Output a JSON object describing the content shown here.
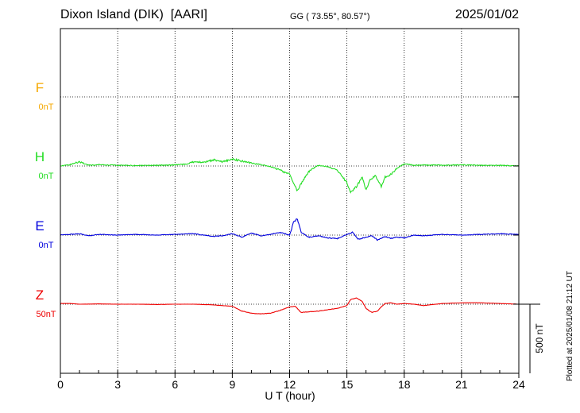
{
  "header": {
    "station": "Dixon Island (DIK)",
    "institute": "[AARI]",
    "coords": "GG ( 73.55°,  80.57°)",
    "date": "2025/01/02"
  },
  "plotted_note": "Plotted at 2025/01/08 21:12 UT",
  "colors": {
    "F": "#f5a800",
    "H": "#22dd22",
    "E": "#0000dd",
    "Z": "#ee0000"
  },
  "chart_data": {
    "type": "line",
    "title": "Dixon Island (DIK)  [AARI]",
    "xlabel": "U T (hour)",
    "xlim": [
      0,
      24
    ],
    "xticks": [
      "0",
      "3",
      "6",
      "9",
      "12",
      "15",
      "18",
      "21",
      "24"
    ],
    "grid": true,
    "scale_bar": "500 nT",
    "series": [
      {
        "name": "F",
        "offset_label": "0nT",
        "values": []
      },
      {
        "name": "H",
        "offset_label": "0nT",
        "x": [
          0,
          0.5,
          1,
          1.5,
          2,
          3,
          4,
          5,
          6,
          6.5,
          7,
          7.5,
          8,
          8.5,
          9,
          9.5,
          10,
          10.5,
          11,
          11.5,
          12,
          12.2,
          12.4,
          12.6,
          13,
          13.5,
          14,
          14.5,
          15,
          15.2,
          15.5,
          15.8,
          16,
          16.2,
          16.5,
          16.8,
          17,
          17.3,
          17.6,
          18,
          18.5,
          19,
          20,
          21,
          22,
          23,
          24
        ],
        "values": [
          0,
          10,
          30,
          5,
          10,
          5,
          3,
          5,
          8,
          12,
          30,
          25,
          45,
          30,
          50,
          35,
          20,
          10,
          -5,
          -30,
          -60,
          -120,
          -180,
          -130,
          -40,
          5,
          -5,
          -30,
          -120,
          -190,
          -150,
          -80,
          -180,
          -100,
          -70,
          -150,
          -80,
          -60,
          -20,
          15,
          5,
          8,
          5,
          8,
          5,
          5,
          0
        ]
      },
      {
        "name": "E",
        "offset_label": "0nT",
        "x": [
          0,
          0.5,
          1,
          1.5,
          2,
          3,
          4,
          5,
          6,
          7,
          8,
          8.5,
          9,
          9.5,
          10,
          10.5,
          11,
          11.5,
          12,
          12.2,
          12.4,
          12.6,
          13,
          13.5,
          14,
          14.5,
          15,
          15.3,
          15.6,
          16,
          16.3,
          16.6,
          17,
          17.3,
          17.6,
          18,
          18.5,
          19,
          20,
          21,
          22,
          23,
          24
        ],
        "values": [
          0,
          5,
          10,
          -5,
          5,
          0,
          5,
          0,
          5,
          10,
          -10,
          -5,
          10,
          -15,
          15,
          -5,
          5,
          20,
          0,
          90,
          120,
          20,
          -15,
          -5,
          -20,
          -25,
          5,
          20,
          -30,
          -15,
          -5,
          -35,
          -10,
          -25,
          -15,
          -20,
          0,
          -5,
          5,
          0,
          5,
          10,
          5
        ]
      },
      {
        "name": "Z",
        "offset_label": "50nT",
        "x": [
          0,
          0.5,
          1,
          2,
          3,
          4,
          5,
          6,
          7,
          8,
          8.5,
          9,
          9.5,
          10,
          10.5,
          11,
          11.5,
          12,
          12.3,
          12.6,
          13,
          13.5,
          14,
          14.5,
          15,
          15.2,
          15.5,
          15.8,
          16,
          16.3,
          16.6,
          16.8,
          17,
          17.3,
          17.6,
          18,
          18.5,
          19,
          20,
          21,
          22,
          23,
          24
        ],
        "values": [
          5,
          5,
          0,
          2,
          0,
          0,
          -2,
          0,
          0,
          -5,
          -10,
          -15,
          -50,
          -65,
          -70,
          -65,
          -45,
          -20,
          -15,
          -60,
          -55,
          -50,
          -40,
          -30,
          -10,
          35,
          45,
          20,
          -30,
          -60,
          -50,
          -20,
          5,
          10,
          0,
          5,
          0,
          -10,
          5,
          10,
          10,
          5,
          0
        ]
      }
    ]
  }
}
